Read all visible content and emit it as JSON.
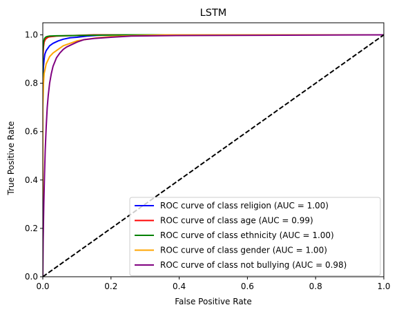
{
  "chart_data": {
    "type": "line",
    "title": "LSTM",
    "xlabel": "False Positive Rate",
    "ylabel": "True Positive Rate",
    "xlim": [
      0.0,
      1.0
    ],
    "ylim": [
      0.0,
      1.05
    ],
    "xticks": [
      "0.0",
      "0.2",
      "0.4",
      "0.6",
      "0.8",
      "1.0"
    ],
    "yticks": [
      "0.0",
      "0.2",
      "0.4",
      "0.6",
      "0.8",
      "1.0"
    ],
    "grid": false,
    "legend_position": "lower-right",
    "series": [
      {
        "name": "ROC curve of class religion (AUC = 1.00)",
        "color": "#0000ff",
        "x": [
          0,
          0,
          0.002,
          0.004,
          0.006,
          0.01,
          0.015,
          0.02,
          0.03,
          0.045,
          0.06,
          0.08,
          0.1,
          0.13,
          0.16,
          0.2,
          1.0
        ],
        "y": [
          0,
          0.8,
          0.87,
          0.9,
          0.92,
          0.935,
          0.945,
          0.955,
          0.965,
          0.975,
          0.982,
          0.988,
          0.99,
          0.995,
          0.998,
          1.0,
          1.0
        ]
      },
      {
        "name": "ROC curve of class age (AUC = 0.99)",
        "color": "#ff0000",
        "x": [
          0,
          0,
          0.002,
          0.004,
          0.007,
          0.01,
          0.015,
          0.02,
          0.04,
          0.08,
          0.15,
          1.0
        ],
        "y": [
          0,
          0.9,
          0.95,
          0.97,
          0.98,
          0.985,
          0.99,
          0.992,
          0.995,
          0.997,
          1.0,
          1.0
        ]
      },
      {
        "name": "ROC curve of class ethnicity (AUC = 1.00)",
        "color": "#008000",
        "x": [
          0,
          0,
          0.002,
          0.005,
          0.008,
          0.012,
          0.02,
          0.04,
          0.08,
          0.12,
          0.18,
          0.25,
          1.0
        ],
        "y": [
          0,
          0.93,
          0.97,
          0.985,
          0.99,
          0.993,
          0.995,
          0.996,
          0.997,
          0.998,
          0.999,
          1.0,
          1.0
        ]
      },
      {
        "name": "ROC curve of class gender (AUC = 1.00)",
        "color": "#ffa500",
        "x": [
          0,
          0,
          0.002,
          0.004,
          0.007,
          0.01,
          0.015,
          0.02,
          0.03,
          0.045,
          0.06,
          0.08,
          0.1,
          0.13,
          0.16,
          0.2,
          0.25,
          0.3,
          0.36,
          1.0
        ],
        "y": [
          0,
          0.7,
          0.8,
          0.84,
          0.86,
          0.88,
          0.895,
          0.91,
          0.925,
          0.94,
          0.955,
          0.965,
          0.975,
          0.982,
          0.988,
          0.993,
          0.996,
          0.998,
          1.0,
          1.0
        ]
      },
      {
        "name": "ROC curve of class not bullying (AUC = 0.98)",
        "color": "#800080",
        "x": [
          0,
          0.001,
          0.003,
          0.005,
          0.007,
          0.01,
          0.013,
          0.016,
          0.02,
          0.025,
          0.03,
          0.04,
          0.05,
          0.06,
          0.07,
          0.085,
          0.1,
          0.12,
          0.15,
          0.2,
          0.26,
          0.37,
          1.0
        ],
        "y": [
          0,
          0.15,
          0.3,
          0.42,
          0.52,
          0.62,
          0.7,
          0.75,
          0.8,
          0.84,
          0.87,
          0.905,
          0.925,
          0.94,
          0.95,
          0.96,
          0.97,
          0.98,
          0.985,
          0.99,
          0.995,
          0.997,
          1.0
        ]
      },
      {
        "name": "",
        "color": "#000000",
        "dashed": true,
        "x": [
          0,
          1
        ],
        "y": [
          0,
          1
        ]
      }
    ]
  }
}
